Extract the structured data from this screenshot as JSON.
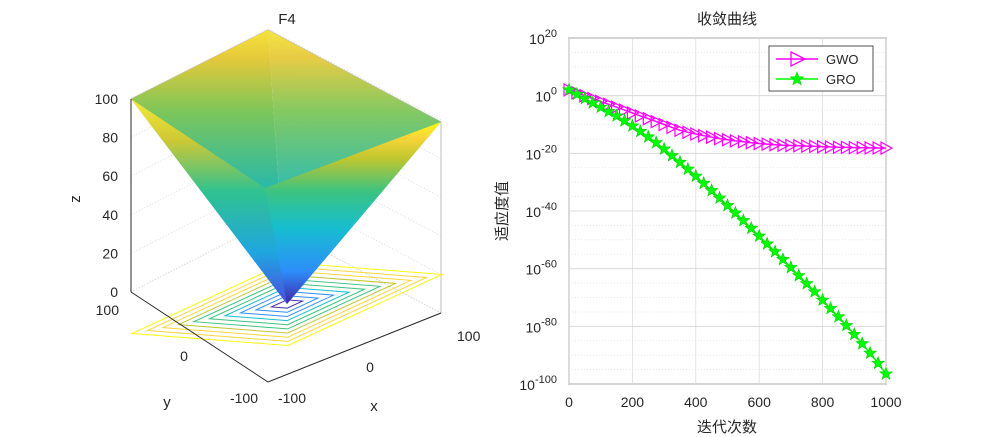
{
  "chart_data": [
    {
      "type": "surface3d",
      "title": "F4",
      "xlabel": "x",
      "ylabel": "y",
      "zlabel": "z",
      "xlim": [
        -100,
        100
      ],
      "ylim": [
        -100,
        100
      ],
      "zlim": [
        0,
        100
      ],
      "x_ticks": [
        "-100",
        "0",
        "100"
      ],
      "y_ticks": [
        "-100",
        "0",
        "100"
      ],
      "z_ticks": [
        "0",
        "20",
        "40",
        "60",
        "80",
        "100"
      ],
      "function": "z = max(|x|, |y|)",
      "contour_levels": [
        10,
        20,
        30,
        40,
        50,
        60,
        70,
        80,
        90,
        100
      ],
      "colormap": [
        "#3e26a8",
        "#2d8efa",
        "#17becf",
        "#3cc380",
        "#c0c62e",
        "#fbd639",
        "#f9fb0e"
      ]
    },
    {
      "type": "line",
      "title": "收敛曲线",
      "xlabel": "迭代次数",
      "ylabel": "适应度值",
      "xlim": [
        0,
        1000
      ],
      "x_ticks": [
        "0",
        "200",
        "400",
        "600",
        "800",
        "1000"
      ],
      "y_scale": "log",
      "y_exponents": [
        20,
        0,
        -20,
        -40,
        -60,
        -80,
        -100
      ],
      "y_tick_base": "10",
      "legend_position": "top-right",
      "series": [
        {
          "name": "GWO",
          "color": "#ff00ff",
          "marker": "triangle-right",
          "x": [
            0,
            25,
            50,
            75,
            100,
            125,
            150,
            175,
            200,
            225,
            250,
            275,
            300,
            325,
            350,
            375,
            400,
            425,
            450,
            475,
            500,
            525,
            550,
            575,
            600,
            625,
            650,
            675,
            700,
            725,
            750,
            775,
            800,
            825,
            850,
            875,
            900,
            925,
            950,
            975,
            1000
          ],
          "log10_y": [
            2,
            1,
            0,
            -1,
            -2,
            -3,
            -4,
            -5,
            -6,
            -7,
            -8,
            -9,
            -10,
            -11,
            -12,
            -12.7,
            -13.3,
            -13.9,
            -14.4,
            -14.9,
            -15.3,
            -15.7,
            -16,
            -16.3,
            -16.6,
            -16.8,
            -17,
            -17.2,
            -17.3,
            -17.4,
            -17.5,
            -17.6,
            -17.7,
            -17.8,
            -17.9,
            -17.95,
            -18,
            -18.05,
            -18.1,
            -18.15,
            -18.2
          ]
        },
        {
          "name": "GRO",
          "color": "#00ff00",
          "marker": "star",
          "x": [
            0,
            25,
            50,
            75,
            100,
            125,
            150,
            175,
            200,
            225,
            250,
            275,
            300,
            325,
            350,
            375,
            400,
            425,
            450,
            475,
            500,
            525,
            550,
            575,
            600,
            625,
            650,
            675,
            700,
            725,
            750,
            775,
            800,
            825,
            850,
            875,
            900,
            925,
            950,
            975,
            1000
          ],
          "log10_y": [
            2,
            0.5,
            -1,
            -2.5,
            -4,
            -5.5,
            -7,
            -8.7,
            -10.5,
            -12.4,
            -14.3,
            -16.3,
            -18.5,
            -20.8,
            -23.1,
            -25.5,
            -27.9,
            -30.4,
            -32.9,
            -35.5,
            -38.1,
            -40.7,
            -43.3,
            -46,
            -48.7,
            -51.4,
            -54.1,
            -56.8,
            -59.6,
            -62.4,
            -65.2,
            -68,
            -70.9,
            -73.8,
            -76.7,
            -79.7,
            -82.8,
            -86,
            -89.3,
            -92.8,
            -96.5
          ]
        }
      ]
    }
  ]
}
